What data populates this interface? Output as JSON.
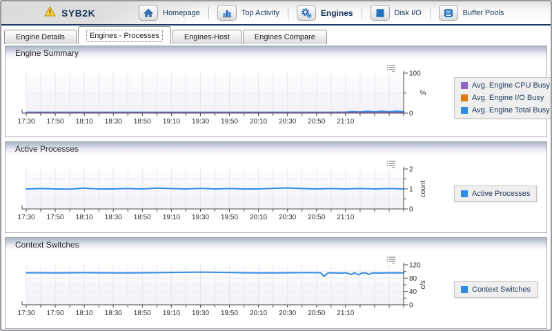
{
  "window": {
    "title": "SYB2K",
    "status_icon": "warning-icon"
  },
  "nav": {
    "items": [
      {
        "id": "homepage",
        "label": "Homepage",
        "icon": "home-icon",
        "active": false
      },
      {
        "id": "top-activity",
        "label": "Top Activity",
        "icon": "top-activity-icon",
        "active": false
      },
      {
        "id": "engines",
        "label": "Engines",
        "icon": "gears-icon",
        "active": true
      },
      {
        "id": "disk-io",
        "label": "Disk I/O",
        "icon": "disk-icon",
        "active": false
      },
      {
        "id": "buffer-pools",
        "label": "Buffer Pools",
        "icon": "buffer-pools-icon",
        "active": false
      }
    ]
  },
  "tabs": [
    {
      "id": "engine-details",
      "label": "Engine Details",
      "selected": false
    },
    {
      "id": "engines-processes",
      "label": "Engines - Processes",
      "selected": true
    },
    {
      "id": "engines-host",
      "label": "Engines-Host",
      "selected": false
    },
    {
      "id": "engines-compare",
      "label": "Engines Compare",
      "selected": false
    }
  ],
  "panels": [
    {
      "title": "Engine Summary"
    },
    {
      "title": "Active Processes"
    },
    {
      "title": "Context Switches"
    }
  ],
  "colors": {
    "header_divider": "#1C3966",
    "nav_text": "#17365D",
    "legend_bg": "#EFEFEF",
    "series_purple": "#8E63C5",
    "series_orange": "#E0770A",
    "series_blue": "#2E8BE6"
  },
  "chart_data": [
    {
      "type": "line",
      "title": "Engine Summary",
      "ylabel": "%",
      "ylim": [
        0,
        100
      ],
      "yticks": [
        0,
        100
      ],
      "yticks_minor": [
        50
      ],
      "x_domain": [
        0,
        260
      ],
      "x_minor_step": 10,
      "x_label_step": 20,
      "x_labels": [
        "17:30",
        "17:50",
        "18:10",
        "18:30",
        "18:50",
        "19:10",
        "19:30",
        "19:50",
        "20:10",
        "20:30",
        "20:50",
        "21:10"
      ],
      "legend_position": "right",
      "grid": true,
      "series": [
        {
          "name": "Avg. Engine CPU Busy",
          "color": "#8E63C5",
          "width": 2,
          "points": [
            [
              0,
              1.6
            ],
            [
              10,
              1.5
            ],
            [
              20,
              1.6
            ],
            [
              30,
              1.5
            ],
            [
              40,
              1.6
            ],
            [
              50,
              1.5
            ],
            [
              60,
              1.6
            ],
            [
              70,
              1.5
            ],
            [
              80,
              1.6
            ],
            [
              90,
              1.5
            ],
            [
              100,
              1.6
            ],
            [
              110,
              1.5
            ],
            [
              120,
              1.6
            ],
            [
              130,
              1.5
            ],
            [
              140,
              1.6
            ],
            [
              150,
              1.5
            ],
            [
              160,
              1.6
            ],
            [
              170,
              1.5
            ],
            [
              180,
              1.6
            ],
            [
              190,
              1.5
            ],
            [
              200,
              1.6
            ],
            [
              210,
              1.5
            ],
            [
              220,
              1.6
            ],
            [
              230,
              1.5
            ],
            [
              240,
              1.6
            ],
            [
              250,
              1.5
            ],
            [
              260,
              1.6
            ]
          ]
        },
        {
          "name": "Avg. Engine I/O Busy",
          "color": "#E0770A",
          "width": 1.5,
          "points": [
            [
              0,
              0.5
            ],
            [
              50,
              0.5
            ],
            [
              100,
              0.5
            ],
            [
              150,
              0.5
            ],
            [
              200,
              0.5
            ],
            [
              260,
              0.5
            ]
          ]
        },
        {
          "name": "Avg. Engine Total Busy",
          "color": "#2E8BE6",
          "width": 2,
          "points": [
            [
              0,
              2.0
            ],
            [
              20,
              2.0
            ],
            [
              40,
              2.1
            ],
            [
              60,
              2.0
            ],
            [
              80,
              2.0
            ],
            [
              100,
              2.1
            ],
            [
              120,
              2.0
            ],
            [
              140,
              2.0
            ],
            [
              160,
              2.1
            ],
            [
              180,
              2.0
            ],
            [
              200,
              2.0
            ],
            [
              210,
              2.2
            ],
            [
              220,
              2.6
            ],
            [
              225,
              4.0
            ],
            [
              230,
              3.0
            ],
            [
              235,
              4.4
            ],
            [
              240,
              3.2
            ],
            [
              245,
              4.6
            ],
            [
              250,
              3.4
            ],
            [
              255,
              4.8
            ],
            [
              260,
              3.8
            ]
          ]
        }
      ]
    },
    {
      "type": "line",
      "title": "Active Processes",
      "ylabel": "count",
      "ylim": [
        0,
        2
      ],
      "yticks": [
        0,
        1,
        2
      ],
      "yticks_minor": [
        0.5,
        1.5
      ],
      "x_domain": [
        0,
        260
      ],
      "x_minor_step": 10,
      "x_label_step": 20,
      "x_labels": [
        "17:30",
        "17:50",
        "18:10",
        "18:30",
        "18:50",
        "19:10",
        "19:30",
        "19:50",
        "20:10",
        "20:30",
        "20:50",
        "21:10"
      ],
      "legend_position": "right",
      "grid": true,
      "series": [
        {
          "name": "Active Processes",
          "color": "#2E8BE6",
          "width": 2,
          "points": [
            [
              0,
              1.0
            ],
            [
              10,
              1.02
            ],
            [
              20,
              1.0
            ],
            [
              30,
              0.99
            ],
            [
              40,
              1.04
            ],
            [
              50,
              1.0
            ],
            [
              60,
              1.0
            ],
            [
              70,
              1.02
            ],
            [
              80,
              1.0
            ],
            [
              90,
              1.04
            ],
            [
              100,
              1.02
            ],
            [
              110,
              1.0
            ],
            [
              120,
              1.03
            ],
            [
              130,
              1.0
            ],
            [
              140,
              1.02
            ],
            [
              150,
              1.0
            ],
            [
              160,
              1.0
            ],
            [
              170,
              1.03
            ],
            [
              180,
              1.05
            ],
            [
              190,
              1.02
            ],
            [
              200,
              1.0
            ],
            [
              210,
              1.02
            ],
            [
              220,
              1.0
            ],
            [
              230,
              1.02
            ],
            [
              240,
              1.0
            ],
            [
              250,
              1.02
            ],
            [
              260,
              1.0
            ]
          ]
        }
      ]
    },
    {
      "type": "line",
      "title": "Context Switches",
      "ylabel": "c/s",
      "ylim": [
        0,
        120
      ],
      "yticks": [
        0,
        40,
        80,
        120
      ],
      "yticks_minor": [
        20,
        60,
        100
      ],
      "x_domain": [
        0,
        260
      ],
      "x_minor_step": 10,
      "x_label_step": 20,
      "x_labels": [
        "17:30",
        "17:50",
        "18:10",
        "18:30",
        "18:50",
        "19:10",
        "19:30",
        "19:50",
        "20:10",
        "20:30",
        "20:50",
        "21:10"
      ],
      "legend_position": "right",
      "grid": true,
      "series": [
        {
          "name": "Context Switches",
          "color": "#2E8BE6",
          "width": 2,
          "points": [
            [
              0,
              96
            ],
            [
              10,
              96
            ],
            [
              20,
              95.5
            ],
            [
              30,
              96
            ],
            [
              40,
              96.5
            ],
            [
              50,
              96
            ],
            [
              60,
              95.5
            ],
            [
              70,
              95.5
            ],
            [
              80,
              96
            ],
            [
              90,
              96.5
            ],
            [
              100,
              97
            ],
            [
              110,
              97.5
            ],
            [
              120,
              98
            ],
            [
              130,
              97.5
            ],
            [
              140,
              97
            ],
            [
              150,
              96
            ],
            [
              160,
              95.5
            ],
            [
              170,
              95.5
            ],
            [
              180,
              96
            ],
            [
              190,
              96.5
            ],
            [
              200,
              96.5
            ],
            [
              203,
              96
            ],
            [
              205,
              85
            ],
            [
              208,
              95.5
            ],
            [
              212,
              96
            ],
            [
              216,
              95
            ],
            [
              220,
              96
            ],
            [
              224,
              91
            ],
            [
              226,
              96
            ],
            [
              229,
              90
            ],
            [
              231,
              95
            ],
            [
              234,
              96
            ],
            [
              236,
              91
            ],
            [
              238,
              95
            ],
            [
              241,
              96
            ],
            [
              244,
              95
            ],
            [
              248,
              96
            ],
            [
              252,
              95.5
            ],
            [
              256,
              96
            ],
            [
              260,
              95.5
            ]
          ]
        }
      ]
    }
  ]
}
